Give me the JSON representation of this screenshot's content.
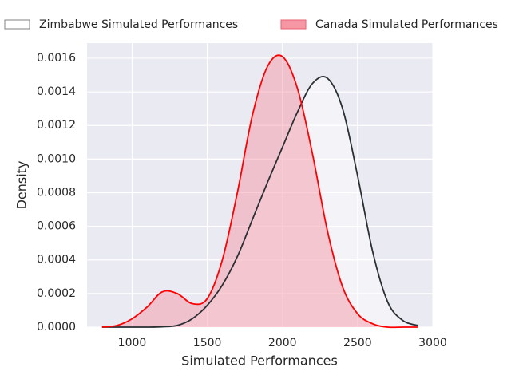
{
  "chart_data": {
    "type": "kde",
    "x_label": "Simulated Performances",
    "y_label": "Density",
    "x": [
      800,
      900,
      1000,
      1100,
      1200,
      1300,
      1400,
      1500,
      1600,
      1700,
      1800,
      1900,
      2000,
      2100,
      2200,
      2300,
      2400,
      2500,
      2600,
      2700,
      2800,
      2900
    ],
    "series": [
      {
        "name": "Zimbabwe Simulated Performances",
        "color": "#2a2f33",
        "fill": "#ffffff",
        "legend_edge": "#808080",
        "values": [
          0,
          0,
          0,
          0,
          2e-06,
          1e-05,
          5e-05,
          0.00013,
          0.00025,
          0.00042,
          0.00064,
          0.00086,
          0.00107,
          0.00128,
          0.00145,
          0.00148,
          0.0013,
          0.0009,
          0.00045,
          0.00015,
          4e-05,
          1e-05
        ]
      },
      {
        "name": "Canada Simulated Performances",
        "color": "#ff0000",
        "fill": "#f7909f",
        "legend_edge": "#e8606f",
        "values": [
          0,
          1e-05,
          5e-05,
          0.00012,
          0.00021,
          0.0002,
          0.00014,
          0.00017,
          0.0004,
          0.0008,
          0.00126,
          0.00155,
          0.00161,
          0.00142,
          0.00103,
          0.00057,
          0.00024,
          8e-05,
          2e-05,
          0,
          0,
          0
        ]
      }
    ],
    "xlim": [
      700,
      3000
    ],
    "xticks": [
      1000,
      1500,
      2000,
      2500,
      3000
    ],
    "ylim": [
      0,
      0.00169
    ],
    "yticks": [
      {
        "value": 0,
        "label": "0.0000"
      },
      {
        "value": 0.0002,
        "label": "0.0002"
      },
      {
        "value": 0.0004,
        "label": "0.0004"
      },
      {
        "value": 0.0006,
        "label": "0.0006"
      },
      {
        "value": 0.0008,
        "label": "0.0008"
      },
      {
        "value": 0.001,
        "label": "0.0010"
      },
      {
        "value": 0.0012,
        "label": "0.0012"
      },
      {
        "value": 0.0014,
        "label": "0.0014"
      },
      {
        "value": 0.0016,
        "label": "0.0016"
      }
    ],
    "grid": true,
    "legend": "top",
    "background": "#eaeaf2"
  }
}
